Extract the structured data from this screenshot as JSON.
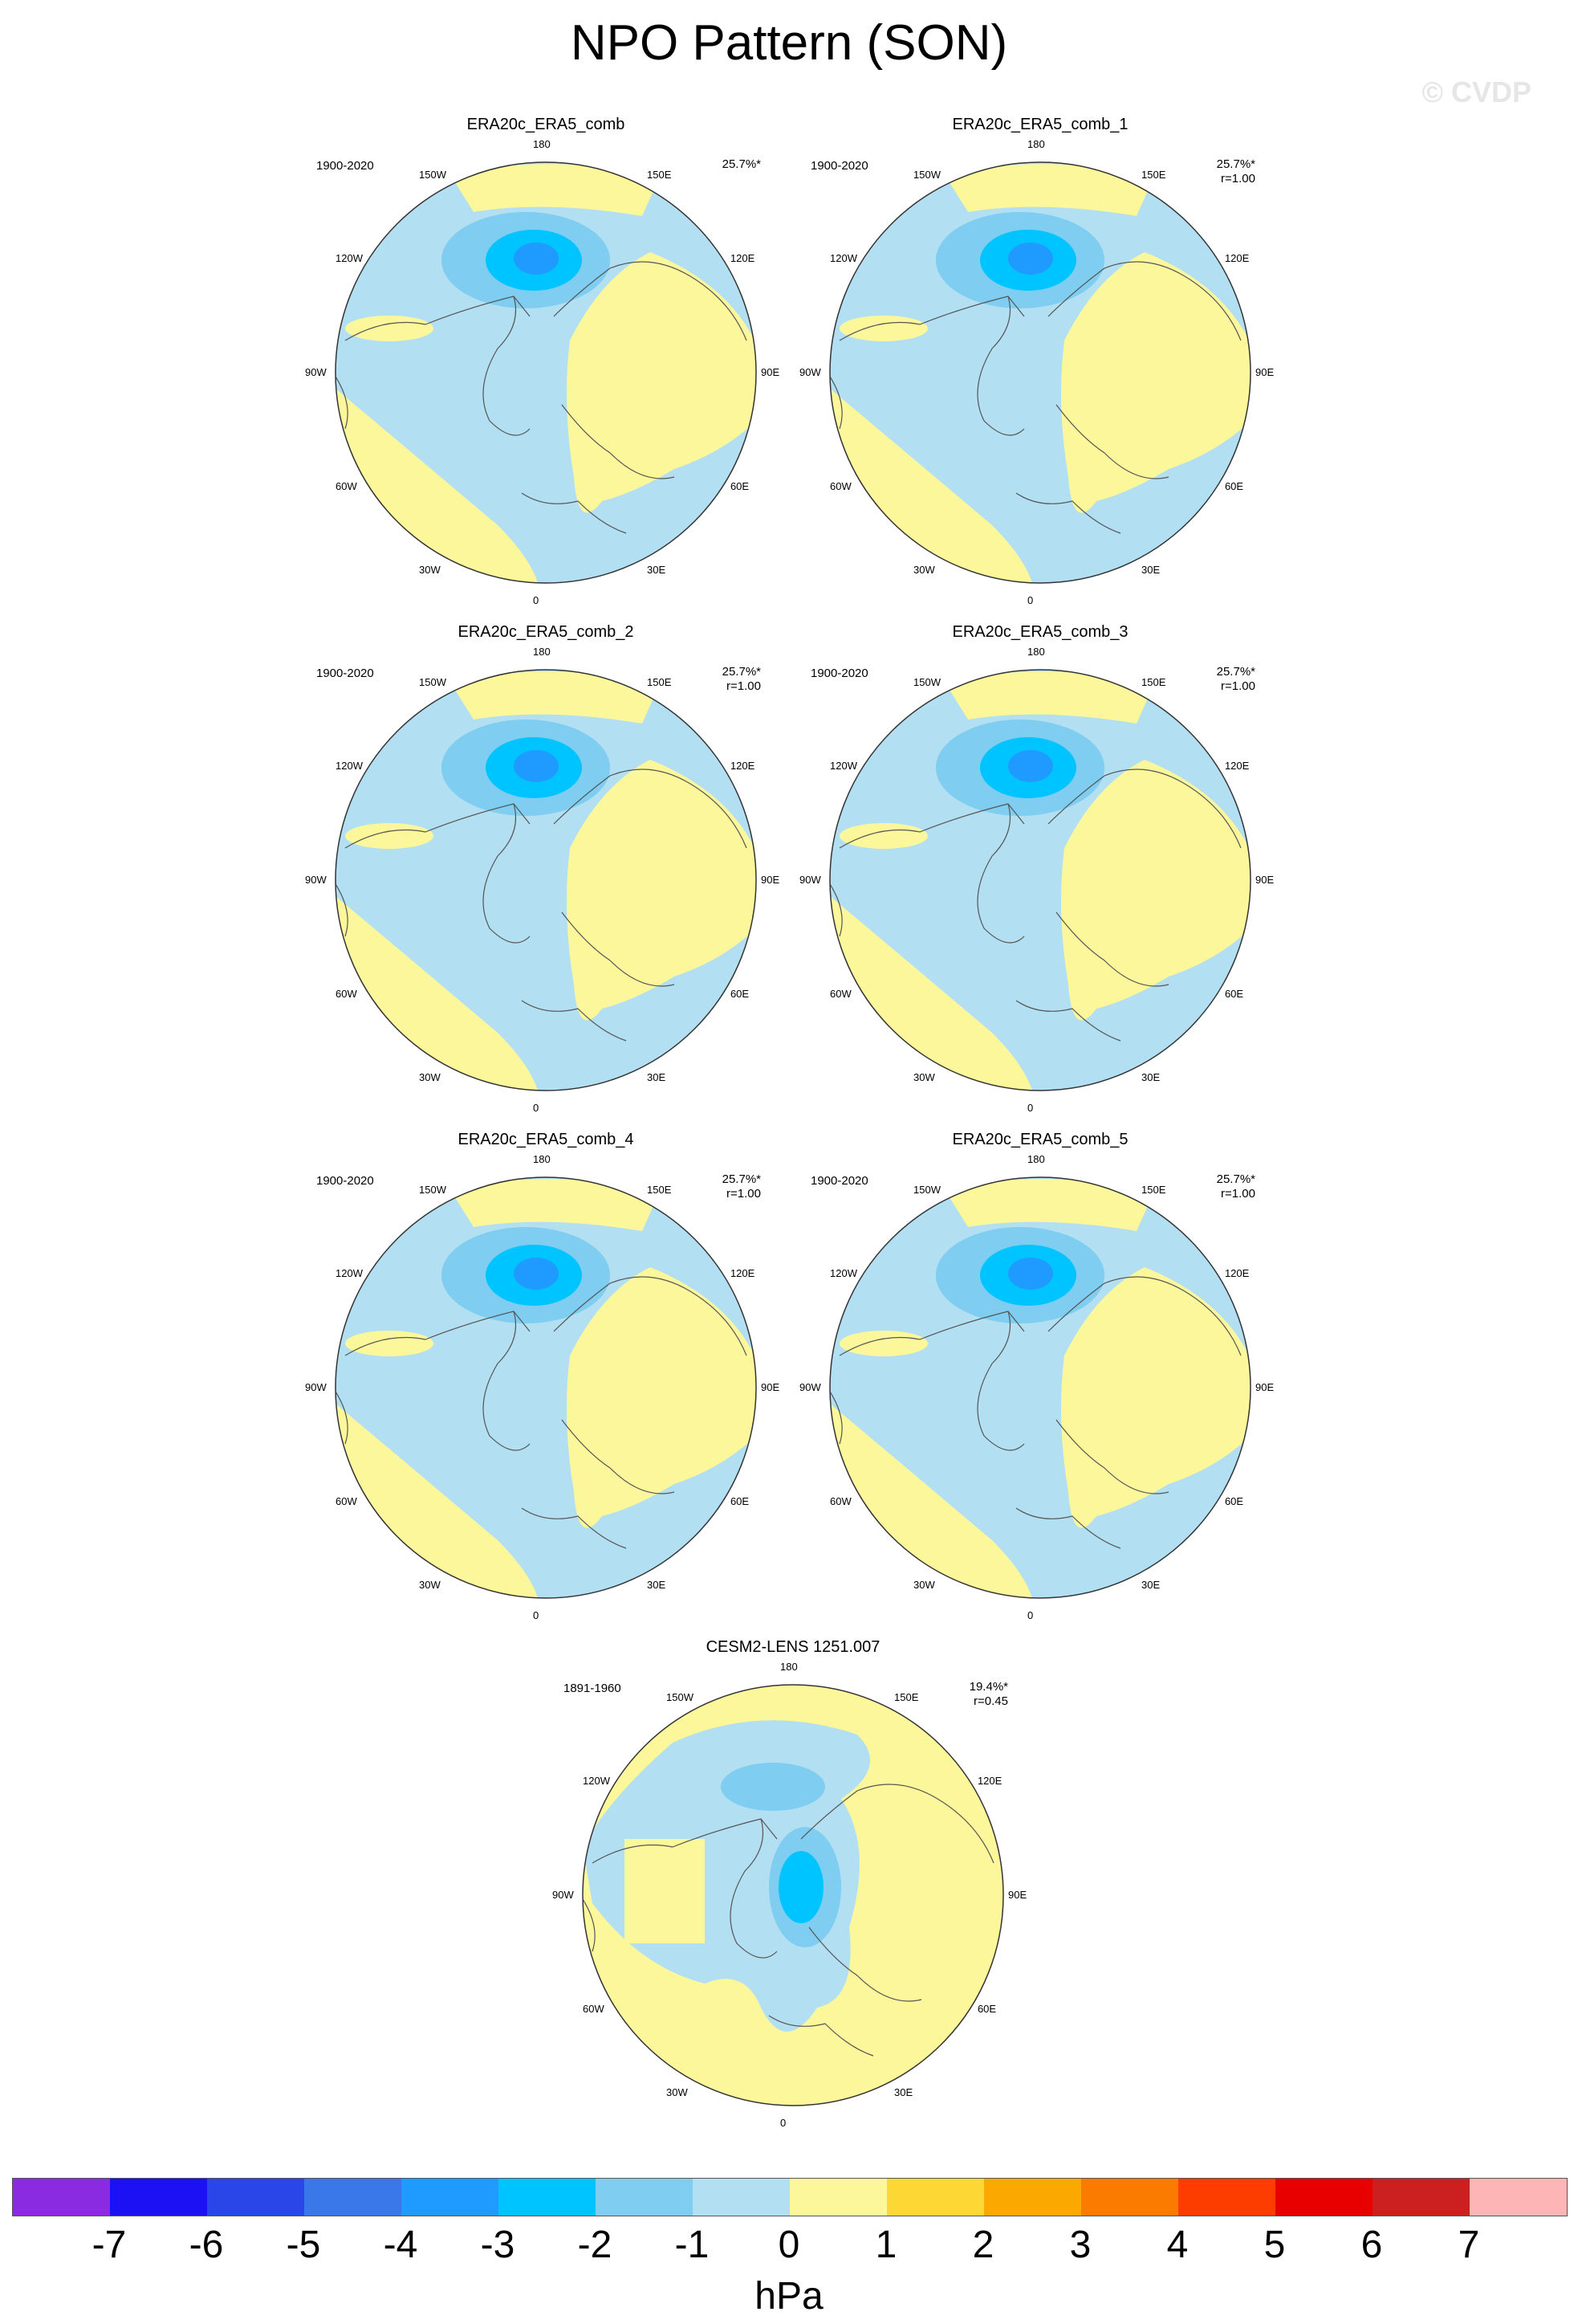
{
  "title": "NPO Pattern (SON)",
  "credit": "© CVDP",
  "lon_labels": [
    "180",
    "150E",
    "120E",
    "90E",
    "60E",
    "30E",
    "0",
    "30W",
    "60W",
    "90W",
    "120W",
    "150W"
  ],
  "panels": [
    {
      "title": "ERA20c_ERA5_comb",
      "period": "1900-2020",
      "pct": "25.7%*",
      "r": "",
      "pattern": "obs"
    },
    {
      "title": "ERA20c_ERA5_comb_1",
      "period": "1900-2020",
      "pct": "25.7%*",
      "r": "r=1.00",
      "pattern": "obs"
    },
    {
      "title": "ERA20c_ERA5_comb_2",
      "period": "1900-2020",
      "pct": "25.7%*",
      "r": "r=1.00",
      "pattern": "obs"
    },
    {
      "title": "ERA20c_ERA5_comb_3",
      "period": "1900-2020",
      "pct": "25.7%*",
      "r": "r=1.00",
      "pattern": "obs"
    },
    {
      "title": "ERA20c_ERA5_comb_4",
      "period": "1900-2020",
      "pct": "25.7%*",
      "r": "r=1.00",
      "pattern": "obs"
    },
    {
      "title": "ERA20c_ERA5_comb_5",
      "period": "1900-2020",
      "pct": "25.7%*",
      "r": "r=1.00",
      "pattern": "obs"
    },
    {
      "title": "CESM2-LENS 1251.007",
      "period": "1891-1960",
      "pct": "19.4%*",
      "r": "r=0.45",
      "pattern": "model"
    }
  ],
  "colorbar": {
    "levels": [
      "-7",
      "-6",
      "-5",
      "-4",
      "-3",
      "-2",
      "-1",
      "0",
      "1",
      "2",
      "3",
      "4",
      "5",
      "6",
      "7"
    ],
    "colors": [
      "#8a2be2",
      "#1c10f5",
      "#2a45e8",
      "#3a78ea",
      "#1f9bff",
      "#00c4ff",
      "#7fcdf0",
      "#b2dff2",
      "#fdf79c",
      "#fdd834",
      "#fba800",
      "#fb7b00",
      "#fd3c00",
      "#e80000",
      "#cc1f1f",
      "#fdb5b5"
    ],
    "units": "hPa"
  }
}
